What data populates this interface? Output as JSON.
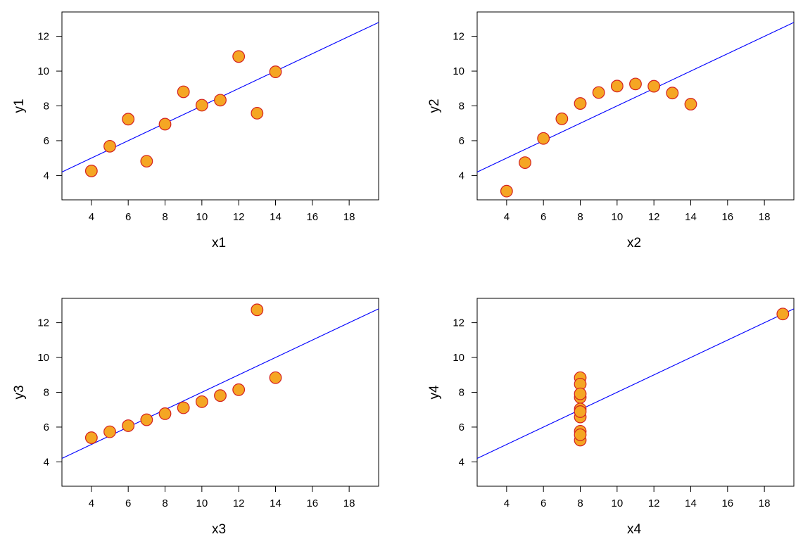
{
  "chart_data": [
    {
      "type": "scatter",
      "xlabel": "x1",
      "ylabel": "y1",
      "xlim": [
        2.4,
        19.6
      ],
      "ylim": [
        2.6,
        13.4
      ],
      "x_ticks": [
        "4",
        "6",
        "8",
        "10",
        "12",
        "14",
        "16",
        "18"
      ],
      "y_ticks": [
        "4",
        "6",
        "8",
        "10",
        "12"
      ],
      "x": [
        10,
        8,
        13,
        9,
        11,
        14,
        6,
        4,
        12,
        7,
        5
      ],
      "y": [
        8.04,
        6.95,
        7.58,
        8.81,
        8.33,
        9.96,
        7.24,
        4.26,
        10.84,
        4.82,
        5.68
      ],
      "fit_line": {
        "intercept": 3.0,
        "slope": 0.5
      },
      "point_fill": "#f5a623",
      "point_edge": "#d32020",
      "line_color": "#0000ff",
      "grid": false
    },
    {
      "type": "scatter",
      "xlabel": "x2",
      "ylabel": "y2",
      "xlim": [
        2.4,
        19.6
      ],
      "ylim": [
        2.6,
        13.4
      ],
      "x_ticks": [
        "4",
        "6",
        "8",
        "10",
        "12",
        "14",
        "16",
        "18"
      ],
      "y_ticks": [
        "4",
        "6",
        "8",
        "10",
        "12"
      ],
      "x": [
        10,
        8,
        13,
        9,
        11,
        14,
        6,
        4,
        12,
        7,
        5
      ],
      "y": [
        9.14,
        8.14,
        8.74,
        8.77,
        9.26,
        8.1,
        6.13,
        3.1,
        9.13,
        7.26,
        4.74
      ],
      "fit_line": {
        "intercept": 3.0,
        "slope": 0.5
      },
      "point_fill": "#f5a623",
      "point_edge": "#d32020",
      "line_color": "#0000ff",
      "grid": false
    },
    {
      "type": "scatter",
      "xlabel": "x3",
      "ylabel": "y3",
      "xlim": [
        2.4,
        19.6
      ],
      "ylim": [
        2.6,
        13.4
      ],
      "x_ticks": [
        "4",
        "6",
        "8",
        "10",
        "12",
        "14",
        "16",
        "18"
      ],
      "y_ticks": [
        "4",
        "6",
        "8",
        "10",
        "12"
      ],
      "x": [
        10,
        8,
        13,
        9,
        11,
        14,
        6,
        4,
        12,
        7,
        5
      ],
      "y": [
        7.46,
        6.77,
        12.74,
        7.11,
        7.81,
        8.84,
        6.08,
        5.39,
        8.15,
        6.42,
        5.73
      ],
      "fit_line": {
        "intercept": 3.0,
        "slope": 0.5
      },
      "point_fill": "#f5a623",
      "point_edge": "#d32020",
      "line_color": "#0000ff",
      "grid": false
    },
    {
      "type": "scatter",
      "xlabel": "x4",
      "ylabel": "y4",
      "xlim": [
        2.4,
        19.6
      ],
      "ylim": [
        2.6,
        13.4
      ],
      "x_ticks": [
        "4",
        "6",
        "8",
        "10",
        "12",
        "14",
        "16",
        "18"
      ],
      "y_ticks": [
        "4",
        "6",
        "8",
        "10",
        "12"
      ],
      "x": [
        8,
        8,
        8,
        8,
        8,
        8,
        8,
        19,
        8,
        8,
        8
      ],
      "y": [
        6.58,
        5.76,
        7.71,
        8.84,
        8.47,
        7.04,
        5.25,
        12.5,
        5.56,
        7.91,
        6.89
      ],
      "fit_line": {
        "intercept": 3.0,
        "slope": 0.5
      },
      "point_fill": "#f5a623",
      "point_edge": "#d32020",
      "line_color": "#0000ff",
      "grid": false
    }
  ]
}
